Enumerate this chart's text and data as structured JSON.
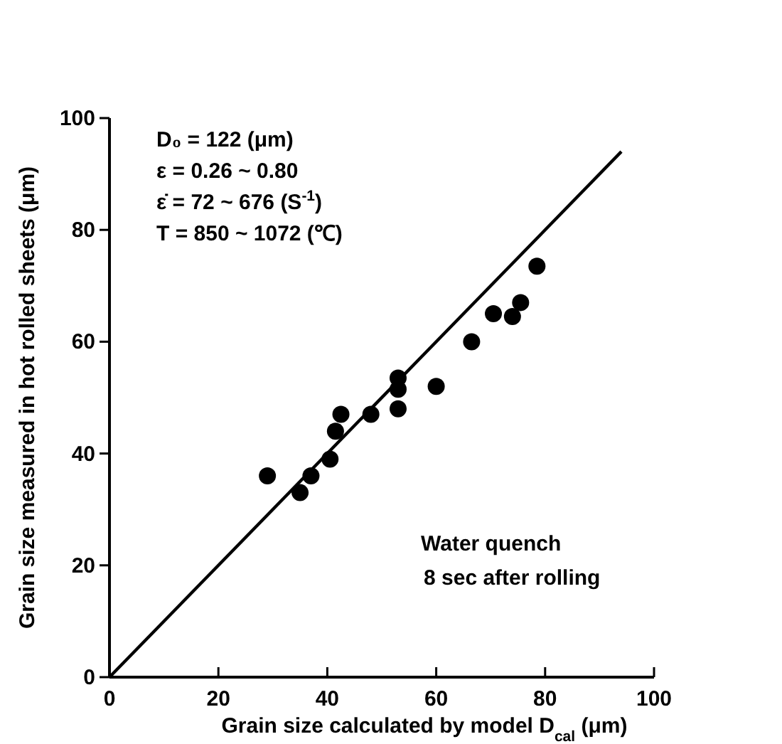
{
  "chart_data": {
    "type": "scatter",
    "xlabel": "Grain size calculated by model D$_{cal}$ (μm)",
    "ylabel": "Grain size measured in hot rolled sheets (μm)",
    "xlim": [
      0,
      100
    ],
    "ylim": [
      0,
      100
    ],
    "xticks": [
      0,
      20,
      40,
      60,
      80,
      100
    ],
    "yticks": [
      0,
      20,
      40,
      60,
      80,
      100
    ],
    "grid": false,
    "marker": "circle",
    "series": [
      {
        "color": "#000000",
        "x": [
          29,
          35,
          37,
          40.5,
          41.5,
          42.5,
          48,
          53,
          53,
          53,
          60,
          66.5,
          70.5,
          74,
          75.5,
          78.5
        ],
        "values": [
          36,
          33,
          36,
          39,
          44,
          47,
          47,
          53.5,
          51.5,
          48,
          52,
          60,
          65,
          64.5,
          67,
          73.5
        ]
      },
      {
        "type": "line",
        "color": "#000000",
        "line_style": "solid",
        "marker": "none",
        "x": [
          0,
          94
        ],
        "values": [
          0,
          94
        ]
      }
    ],
    "annotations": [
      "D₀ = 122 (μm)",
      "ε = 0.26 ~ 0.80",
      "ε̇ = 72 ~ 676 (S$^{-1}$)",
      "T = 850 ~ 1072 (℃)",
      "Water quench",
      "8 sec after rolling"
    ]
  }
}
